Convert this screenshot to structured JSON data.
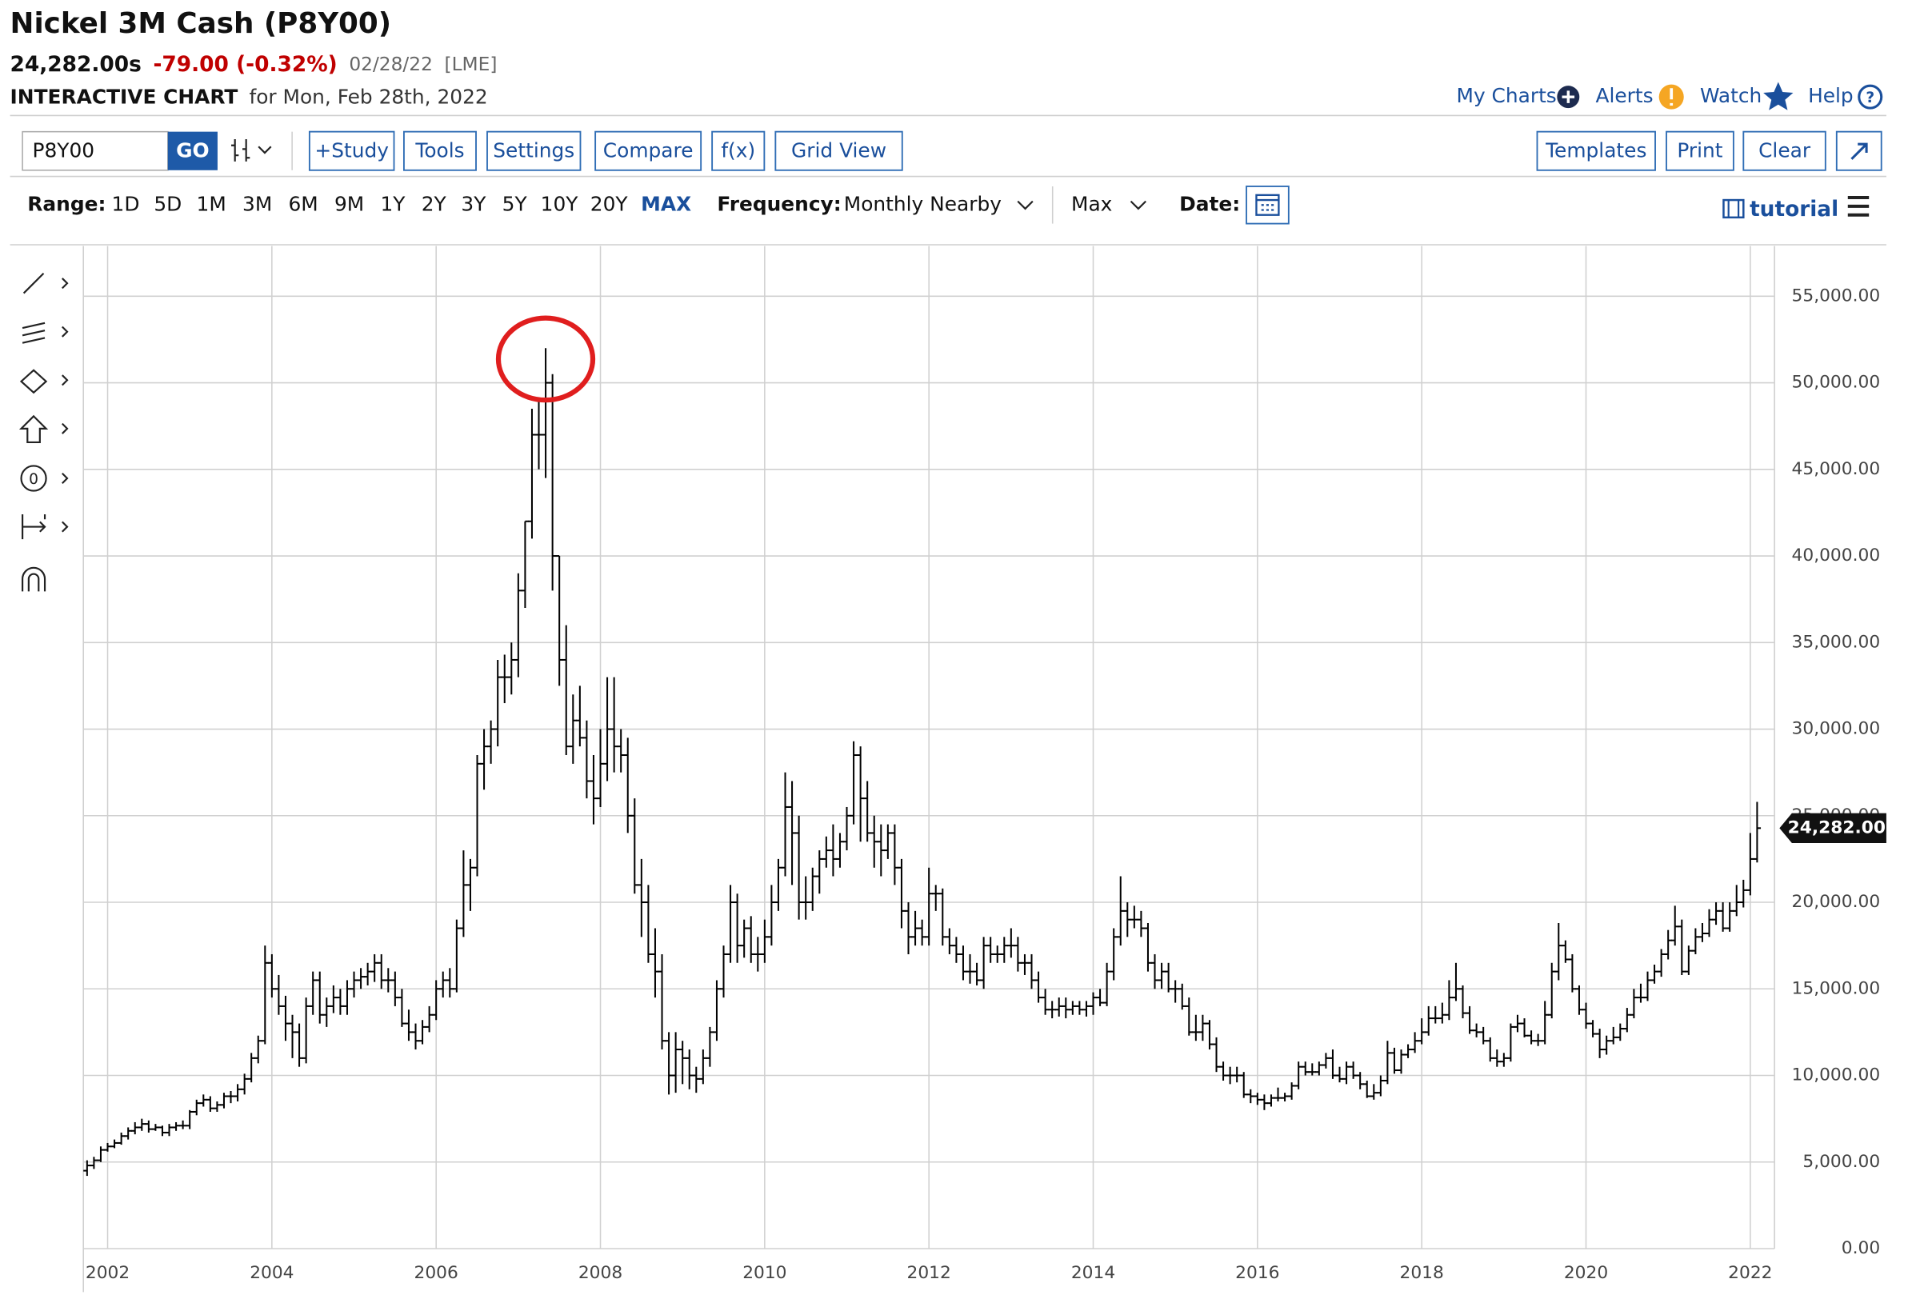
{
  "header": {
    "title": "Nickel 3M Cash (P8Y00)",
    "price": "24,282.00s",
    "change": "-79.00 (-0.32%)",
    "date": "02/28/22",
    "exchange": "[LME]",
    "chart_kind": "INTERACTIVE CHART",
    "for_date": "for Mon, Feb 28th, 2022"
  },
  "top_links": [
    "My Charts",
    "Alerts",
    "Watch",
    "Help"
  ],
  "toolbar": {
    "symbol": "P8Y00",
    "go": "GO",
    "left_buttons": [
      "+Study",
      "Tools",
      "Settings",
      "Compare",
      "f(x)",
      "Grid View"
    ],
    "right_buttons": [
      "Templates",
      "Print",
      "Clear"
    ]
  },
  "range_bar": {
    "range_label": "Range:",
    "ranges": [
      "1D",
      "5D",
      "1M",
      "3M",
      "6M",
      "9M",
      "1Y",
      "2Y",
      "3Y",
      "5Y",
      "10Y",
      "20Y",
      "MAX"
    ],
    "frequency_label": "Frequency:",
    "frequency": "Monthly Nearby",
    "period": "Max",
    "date_label": "Date:",
    "tutorial": "tutorial"
  },
  "chart_data": {
    "type": "ohlc",
    "color": "#000000",
    "grid": true,
    "categories": [
      null,
      null,
      null,
      "2002",
      null,
      null,
      null,
      null,
      null,
      null,
      null,
      null,
      null,
      null,
      null,
      null,
      null,
      null,
      null,
      null,
      null,
      null,
      null,
      null,
      null,
      null,
      null,
      "2004",
      null,
      null,
      null,
      null,
      null,
      null,
      null,
      null,
      null,
      null,
      null,
      null,
      null,
      null,
      null,
      null,
      null,
      null,
      null,
      null,
      null,
      null,
      null,
      "2006",
      null,
      null,
      null,
      null,
      null,
      null,
      null,
      null,
      null,
      null,
      null,
      null,
      null,
      null,
      null,
      null,
      null,
      null,
      null,
      null,
      null,
      null,
      null,
      "2008",
      null,
      null,
      null,
      null,
      null,
      null,
      null,
      null,
      null,
      null,
      null,
      null,
      null,
      null,
      null,
      null,
      null,
      null,
      null,
      null,
      null,
      null,
      null,
      "2010",
      null,
      null,
      null,
      null,
      null,
      null,
      null,
      null,
      null,
      null,
      null,
      null,
      null,
      null,
      null,
      null,
      null,
      null,
      null,
      null,
      null,
      null,
      null,
      "2012",
      null,
      null,
      null,
      null,
      null,
      null,
      null,
      null,
      null,
      null,
      null,
      null,
      null,
      null,
      null,
      null,
      null,
      null,
      null,
      null,
      null,
      null,
      null,
      "2014",
      null,
      null,
      null,
      null,
      null,
      null,
      null,
      null,
      null,
      null,
      null,
      null,
      null,
      null,
      null,
      null,
      null,
      null,
      null,
      null,
      null,
      null,
      null,
      "2016",
      null,
      null,
      null,
      null,
      null,
      null,
      null,
      null,
      null,
      null,
      null,
      null,
      null,
      null,
      null,
      null,
      null,
      null,
      null,
      null,
      null,
      null,
      null,
      "2018",
      null,
      null,
      null,
      null,
      null,
      null,
      null,
      null,
      null,
      null,
      null,
      null,
      null,
      null,
      null,
      null,
      null,
      null,
      null,
      null,
      null,
      null,
      null,
      "2020",
      null,
      null,
      null,
      null,
      null,
      null,
      null,
      null,
      null,
      null,
      null,
      null,
      null,
      null,
      null,
      null,
      null,
      null,
      null,
      null,
      null,
      null,
      null,
      "2022",
      null
    ],
    "open": [
      4500,
      4800,
      5100,
      5700,
      5900,
      6100,
      6500,
      6800,
      7000,
      7200,
      6900,
      7000,
      6700,
      7000,
      7100,
      7100,
      7900,
      8400,
      8600,
      8100,
      8300,
      8800,
      8800,
      9200,
      9800,
      11000,
      12000,
      16500,
      15000,
      14000,
      13000,
      12500,
      11000,
      14000,
      15500,
      13500,
      14000,
      14500,
      14000,
      15000,
      15500,
      15700,
      16000,
      16500,
      15500,
      15500,
      14500,
      13000,
      12500,
      12000,
      12800,
      13500,
      15000,
      15500,
      15000,
      18500,
      21000,
      22000,
      28000,
      29000,
      30000,
      33000,
      33000,
      34000,
      38000,
      42000,
      47000,
      47000,
      50000,
      40000,
      34000,
      29000,
      30500,
      29500,
      27000,
      26000,
      28000,
      30000,
      29000,
      28500,
      25000,
      21000,
      20000,
      17000,
      16000,
      12000,
      10000,
      11500,
      11000,
      10000,
      9800,
      11000,
      12500,
      15000,
      17000,
      20000,
      17500,
      18500,
      17000,
      17000,
      18000,
      20000,
      22000,
      25500,
      24000,
      20000,
      20000,
      21500,
      22500,
      23000,
      22500,
      23500,
      25000,
      28500,
      26000,
      24000,
      23500,
      23000,
      24000,
      22000,
      19500,
      18000,
      18500,
      18000,
      20500,
      20500,
      18000,
      17500,
      17000,
      16000,
      16000,
      15500,
      17500,
      17000,
      17000,
      17500,
      17500,
      16500,
      16500,
      15500,
      14500,
      13800,
      13800,
      14000,
      13800,
      14000,
      13800,
      14000,
      14500,
      14200,
      16000,
      18000,
      19500,
      19000,
      19000,
      18500,
      16500,
      15500,
      16000,
      15000,
      15000,
      14000,
      12500,
      12500,
      13000,
      11800,
      10500,
      10000,
      10000,
      10000,
      8900,
      8800,
      8600,
      8400,
      8700,
      8700,
      8800,
      9400,
      10500,
      10200,
      10200,
      10600,
      11000,
      10000,
      9800,
      10500,
      10000,
      9500,
      8800,
      9000,
      9700,
      11300,
      10300,
      11200,
      11500,
      12000,
      12500,
      13300,
      13300,
      13500,
      14500,
      15000,
      13600,
      12600,
      12500,
      12000,
      11000,
      10800,
      11000,
      12800,
      13000,
      12300,
      12000,
      12000,
      13500,
      16000,
      17500,
      16700,
      15000,
      13800,
      13000,
      12400,
      11500,
      12000,
      12200,
      12700,
      13500,
      14500,
      14500,
      15500,
      16000,
      17000,
      17800,
      18600,
      16000,
      17200,
      18000,
      18200,
      19000,
      19500,
      18500,
      19500,
      20000,
      20700,
      22500
    ],
    "high": [
      5100,
      5300,
      5900,
      6100,
      6300,
      6700,
      7000,
      7300,
      7500,
      7400,
      7200,
      7100,
      7200,
      7300,
      7400,
      8000,
      8600,
      8900,
      8800,
      8500,
      9000,
      9100,
      9500,
      10100,
      11300,
      12300,
      17500,
      17000,
      15800,
      14600,
      13500,
      13000,
      14500,
      16000,
      16000,
      14500,
      15200,
      15000,
      15500,
      16000,
      16200,
      16500,
      17000,
      17000,
      16200,
      16000,
      15000,
      13800,
      13000,
      13200,
      14000,
      15500,
      16000,
      16200,
      19000,
      23000,
      22500,
      28500,
      30000,
      30500,
      34000,
      34300,
      35000,
      39000,
      42000,
      48500,
      49000,
      52000,
      50500,
      40000,
      36000,
      32000,
      32500,
      30500,
      28500,
      30000,
      33000,
      33000,
      30000,
      29500,
      26000,
      22500,
      21000,
      18500,
      17000,
      12500,
      12500,
      12000,
      11500,
      10500,
      11500,
      12800,
      15500,
      17500,
      21000,
      20500,
      19000,
      19200,
      18000,
      19000,
      21000,
      22500,
      27500,
      27000,
      25000,
      21500,
      22000,
      23000,
      23800,
      24500,
      24000,
      25500,
      29300,
      29000,
      27000,
      25000,
      24500,
      24500,
      24500,
      22500,
      20000,
      19500,
      19000,
      22000,
      21000,
      20800,
      18500,
      18000,
      17500,
      17000,
      16500,
      18000,
      18000,
      17500,
      18000,
      18500,
      18000,
      17000,
      17000,
      16000,
      15000,
      14300,
      14500,
      14500,
      14300,
      14300,
      14300,
      14800,
      15000,
      16500,
      18500,
      21500,
      20000,
      19800,
      19500,
      18800,
      17000,
      16500,
      16500,
      15500,
      15300,
      14500,
      13500,
      13500,
      13200,
      12200,
      10800,
      10500,
      10500,
      10200,
      9200,
      9000,
      8900,
      8900,
      9300,
      9000,
      9600,
      10800,
      10800,
      10700,
      10800,
      11300,
      11500,
      10500,
      10800,
      10800,
      10200,
      9700,
      9500,
      10000,
      12000,
      11600,
      11500,
      11800,
      12500,
      13300,
      14000,
      14000,
      14200,
      15500,
      16500,
      15200,
      14000,
      13000,
      12800,
      12200,
      11500,
      11300,
      13000,
      13500,
      13300,
      12600,
      12400,
      14300,
      16500,
      18800,
      17800,
      17000,
      15200,
      14200,
      13200,
      12700,
      12300,
      12800,
      13000,
      13900,
      15000,
      15300,
      16000,
      16400,
      17300,
      18400,
      19800,
      19000,
      17500,
      18500,
      18800,
      19600,
      20000,
      20000,
      20000,
      21000,
      21300,
      24000,
      25800
    ],
    "low": [
      4200,
      4600,
      5000,
      5600,
      5800,
      6000,
      6300,
      6600,
      6800,
      6700,
      6800,
      6500,
      6500,
      6800,
      6900,
      6900,
      7700,
      8200,
      7900,
      7900,
      8100,
      8400,
      8500,
      8900,
      9600,
      10700,
      11800,
      14500,
      13500,
      12000,
      11000,
      10500,
      10700,
      13500,
      13000,
      12800,
      13600,
      13500,
      13500,
      14500,
      15000,
      15200,
      15400,
      15000,
      14800,
      14000,
      12800,
      12000,
      11500,
      11800,
      12500,
      13200,
      14500,
      14500,
      14800,
      18000,
      19500,
      21500,
      26500,
      28000,
      29000,
      31500,
      32000,
      33000,
      37000,
      41000,
      45000,
      44500,
      38000,
      32500,
      28500,
      28000,
      29000,
      26000,
      24500,
      25500,
      27000,
      27500,
      27500,
      24000,
      20500,
      18000,
      16500,
      14500,
      11500,
      8900,
      9000,
      9500,
      9200,
      9000,
      9500,
      10500,
      12000,
      14500,
      16500,
      16500,
      16800,
      16500,
      16000,
      16500,
      17500,
      19500,
      21500,
      21000,
      19000,
      19000,
      19500,
      20500,
      22000,
      21500,
      22000,
      23000,
      24500,
      23500,
      23500,
      22000,
      21500,
      22500,
      21000,
      18500,
      17000,
      17500,
      17500,
      17500,
      19500,
      17500,
      17000,
      16500,
      15500,
      15300,
      15200,
      15000,
      16500,
      16500,
      16500,
      16800,
      16000,
      15800,
      15000,
      14200,
      13500,
      13300,
      13400,
      13300,
      13500,
      13500,
      13400,
      13500,
      14000,
      14000,
      15500,
      17500,
      18000,
      18500,
      18000,
      16000,
      15000,
      15000,
      14800,
      14200,
      13800,
      12300,
      12000,
      12000,
      11500,
      10200,
      9700,
      9500,
      9600,
      8700,
      8400,
      8300,
      8000,
      8200,
      8500,
      8500,
      8600,
      9200,
      10000,
      10000,
      10000,
      10400,
      9800,
      9600,
      9500,
      9800,
      9200,
      8700,
      8600,
      8800,
      9500,
      10100,
      10100,
      11000,
      11300,
      11800,
      12300,
      13000,
      13000,
      13200,
      14300,
      13300,
      12400,
      12200,
      11800,
      10800,
      10500,
      10500,
      10800,
      12500,
      12200,
      11800,
      11700,
      11800,
      13300,
      15500,
      16500,
      14800,
      13500,
      12700,
      12200,
      11000,
      11200,
      11800,
      12000,
      12500,
      13300,
      14200,
      14300,
      15300,
      15700,
      16700,
      17500,
      15800,
      15800,
      17000,
      17700,
      18000,
      18700,
      18300,
      18300,
      19200,
      19700,
      20400,
      22300
    ],
    "close": [
      4800,
      5100,
      5700,
      5900,
      6100,
      6500,
      6800,
      7000,
      7200,
      6900,
      7000,
      6700,
      7000,
      7100,
      7100,
      7900,
      8400,
      8600,
      8100,
      8300,
      8800,
      8800,
      9200,
      9800,
      11000,
      12000,
      16500,
      15000,
      14000,
      13000,
      12500,
      11000,
      14000,
      15500,
      13500,
      14000,
      14500,
      14000,
      15000,
      15500,
      15700,
      16000,
      16500,
      15500,
      15500,
      14500,
      13000,
      12500,
      12000,
      12800,
      13500,
      15000,
      15500,
      15000,
      18500,
      21000,
      22000,
      28000,
      29000,
      30000,
      33000,
      33000,
      34000,
      38000,
      42000,
      47000,
      47000,
      50000,
      40000,
      34000,
      29000,
      30500,
      29500,
      27000,
      26000,
      28000,
      30000,
      29000,
      28500,
      25000,
      21000,
      20000,
      17000,
      16000,
      12000,
      10000,
      11500,
      11000,
      10000,
      9800,
      11000,
      12500,
      15000,
      17000,
      20000,
      17500,
      18500,
      17000,
      17000,
      18000,
      20000,
      22000,
      25500,
      24000,
      20000,
      20000,
      21500,
      22500,
      23000,
      22500,
      23500,
      25000,
      28500,
      26000,
      24000,
      23500,
      23000,
      24000,
      22000,
      19500,
      18000,
      18500,
      18000,
      20500,
      20500,
      18000,
      17500,
      17000,
      16000,
      16000,
      15500,
      17500,
      17000,
      17000,
      17500,
      17500,
      16500,
      16500,
      15500,
      14500,
      13800,
      13800,
      14000,
      13800,
      14000,
      13800,
      14000,
      14500,
      14200,
      16000,
      18000,
      19500,
      19000,
      19000,
      18500,
      16500,
      15500,
      16000,
      15000,
      15000,
      14000,
      12500,
      12500,
      13000,
      11800,
      10500,
      10000,
      10000,
      10000,
      8900,
      8800,
      8600,
      8400,
      8700,
      8700,
      8800,
      9400,
      10500,
      10200,
      10200,
      10600,
      11000,
      10000,
      9800,
      10500,
      10000,
      9500,
      8800,
      9000,
      9700,
      11300,
      10300,
      11200,
      11500,
      12000,
      12500,
      13300,
      13300,
      13500,
      14500,
      15000,
      13600,
      12600,
      12500,
      12000,
      11000,
      10800,
      11000,
      12800,
      13000,
      12300,
      12000,
      12000,
      13500,
      16000,
      17500,
      16700,
      15000,
      13800,
      13000,
      12400,
      11500,
      12000,
      12200,
      12700,
      13500,
      14500,
      14500,
      15500,
      16000,
      17000,
      17800,
      18600,
      16000,
      17200,
      18000,
      18200,
      19000,
      19500,
      18500,
      19500,
      20000,
      20700,
      22500,
      24282
    ],
    "ylim": [
      0,
      57900
    ],
    "yticks": [
      {
        "value": 0,
        "label": "0.00"
      },
      {
        "value": 5000,
        "label": "5,000.00"
      },
      {
        "value": 10000,
        "label": "10,000.00"
      },
      {
        "value": 15000,
        "label": "15,000.00"
      },
      {
        "value": 20000,
        "label": "20,000.00"
      },
      {
        "value": 25000,
        "label": "25,000.00"
      },
      {
        "value": 30000,
        "label": "30,000.00"
      },
      {
        "value": 35000,
        "label": "35,000.00"
      },
      {
        "value": 40000,
        "label": "40,000.00"
      },
      {
        "value": 45000,
        "label": "45,000.00"
      },
      {
        "value": 50000,
        "label": "50,000.00"
      },
      {
        "value": 55000,
        "label": "55,000.00"
      }
    ],
    "last_price": {
      "value": 24282,
      "label": "24,282.00"
    }
  }
}
